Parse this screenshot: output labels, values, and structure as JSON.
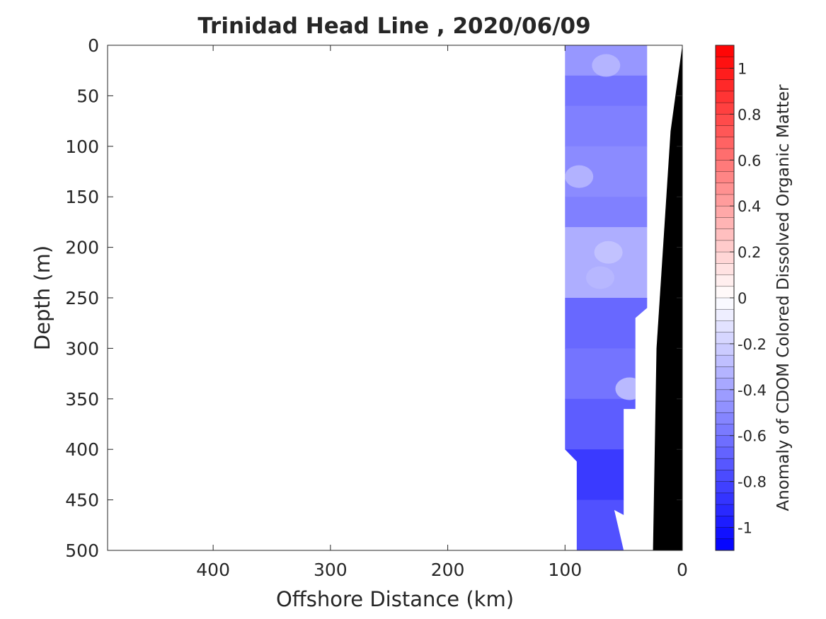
{
  "chart_data": {
    "type": "heatmap",
    "title": "Trinidad Head Line , 2020/06/09",
    "xlabel": "Offshore Distance (km)",
    "ylabel": "Depth (m)",
    "colorbar_label": "Anomaly of CDOM Colored Dissolved Organic Matter",
    "xlim": [
      490,
      0
    ],
    "ylim": [
      0,
      500
    ],
    "x_reversed": true,
    "y_reversed": true,
    "x_ticks": [
      400,
      300,
      200,
      100,
      0
    ],
    "y_ticks": [
      0,
      50,
      100,
      150,
      200,
      250,
      300,
      350,
      400,
      450,
      500
    ],
    "clim": [
      -1.1,
      1.1
    ],
    "colorbar_ticks": [
      1,
      0.8,
      0.6,
      0.4,
      0.2,
      0,
      -0.2,
      -0.4,
      -0.6,
      -0.8,
      -1
    ],
    "colorbar_tick_labels": [
      "1",
      "0.8",
      "0.6",
      "0.4",
      "0.2",
      "0",
      "-0.2",
      "-0.4",
      "-0.6",
      "-0.8",
      "-1"
    ],
    "colormap": "blue-white-red",
    "colors": {
      "negative": "#0000ff",
      "zero": "#ffffff",
      "positive": "#ff0000",
      "bathymetry": "#000000"
    },
    "grid": false,
    "data_region_outline": [
      [
        100,
        0
      ],
      [
        30,
        0
      ],
      [
        30,
        260
      ],
      [
        40,
        270
      ],
      [
        40,
        360
      ],
      [
        50,
        360
      ],
      [
        50,
        465
      ],
      [
        58,
        460
      ],
      [
        50,
        500
      ],
      [
        90,
        500
      ],
      [
        90,
        412
      ],
      [
        100,
        400
      ]
    ],
    "bathymetry": [
      [
        0,
        0
      ],
      [
        10,
        85
      ],
      [
        22,
        300
      ],
      [
        25,
        500
      ]
    ],
    "anomaly_bands": [
      {
        "depth": [
          0,
          30
        ],
        "value": -0.45
      },
      {
        "depth": [
          30,
          60
        ],
        "value": -0.6
      },
      {
        "depth": [
          60,
          100
        ],
        "value": -0.55
      },
      {
        "depth": [
          100,
          150
        ],
        "value": -0.5
      },
      {
        "depth": [
          150,
          180
        ],
        "value": -0.55
      },
      {
        "depth": [
          180,
          250
        ],
        "value": -0.35
      },
      {
        "depth": [
          250,
          300
        ],
        "value": -0.65
      },
      {
        "depth": [
          300,
          350
        ],
        "value": -0.6
      },
      {
        "depth": [
          350,
          400
        ],
        "value": -0.7
      },
      {
        "depth": [
          400,
          450
        ],
        "value": -0.85
      },
      {
        "depth": [
          450,
          500
        ],
        "value": -0.75
      }
    ]
  }
}
